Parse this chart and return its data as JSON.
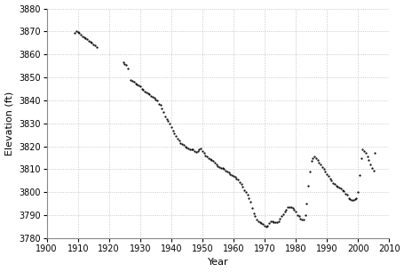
{
  "xlabel": "Year",
  "ylabel": "Elevation (ft)",
  "xlim": [
    1900,
    2010
  ],
  "ylim": [
    3780,
    3880
  ],
  "xticks": [
    1900,
    1910,
    1920,
    1930,
    1940,
    1950,
    1960,
    1970,
    1980,
    1990,
    2000,
    2010
  ],
  "yticks": [
    3780,
    3790,
    3800,
    3810,
    3820,
    3830,
    3840,
    3850,
    3860,
    3870,
    3880
  ],
  "dot_color": "#000000",
  "dot_size": 1.5,
  "background_color": "#ffffff",
  "grid_color": "#bbbbbb",
  "data": [
    [
      1909.0,
      3869.5
    ],
    [
      1909.5,
      3870.0
    ],
    [
      1910.0,
      3869.8
    ],
    [
      1910.5,
      3869.2
    ],
    [
      1911.0,
      3868.5
    ],
    [
      1911.5,
      3868.0
    ],
    [
      1912.0,
      3867.5
    ],
    [
      1912.5,
      3867.0
    ],
    [
      1913.0,
      3866.5
    ],
    [
      1913.5,
      3866.0
    ],
    [
      1914.0,
      3865.5
    ],
    [
      1914.5,
      3865.0
    ],
    [
      1915.0,
      3864.5
    ],
    [
      1915.5,
      3864.0
    ],
    [
      1916.0,
      3863.0
    ],
    [
      1924.5,
      3856.5
    ],
    [
      1925.0,
      3856.0
    ],
    [
      1925.5,
      3855.5
    ],
    [
      1926.0,
      3854.0
    ],
    [
      1927.0,
      3849.0
    ],
    [
      1927.5,
      3848.5
    ],
    [
      1928.0,
      3848.0
    ],
    [
      1928.5,
      3847.5
    ],
    [
      1929.0,
      3847.0
    ],
    [
      1929.5,
      3846.5
    ],
    [
      1930.0,
      3846.0
    ],
    [
      1930.5,
      3845.0
    ],
    [
      1931.0,
      3844.5
    ],
    [
      1931.5,
      3844.0
    ],
    [
      1932.0,
      3843.5
    ],
    [
      1932.5,
      3843.0
    ],
    [
      1933.0,
      3842.5
    ],
    [
      1933.5,
      3842.0
    ],
    [
      1934.0,
      3841.5
    ],
    [
      1934.5,
      3841.0
    ],
    [
      1935.0,
      3840.5
    ],
    [
      1935.5,
      3840.0
    ],
    [
      1936.0,
      3838.5
    ],
    [
      1936.5,
      3838.0
    ],
    [
      1937.0,
      3836.5
    ],
    [
      1937.5,
      3835.0
    ],
    [
      1938.0,
      3833.0
    ],
    [
      1938.5,
      3832.0
    ],
    [
      1939.0,
      3831.0
    ],
    [
      1939.5,
      3830.0
    ],
    [
      1940.0,
      3828.5
    ],
    [
      1940.5,
      3827.0
    ],
    [
      1941.0,
      3825.5
    ],
    [
      1941.5,
      3824.5
    ],
    [
      1942.0,
      3823.5
    ],
    [
      1942.5,
      3822.5
    ],
    [
      1943.0,
      3821.5
    ],
    [
      1943.5,
      3821.0
    ],
    [
      1944.0,
      3820.5
    ],
    [
      1944.5,
      3820.0
    ],
    [
      1945.0,
      3819.5
    ],
    [
      1945.5,
      3819.0
    ],
    [
      1946.0,
      3818.5
    ],
    [
      1946.5,
      3818.5
    ],
    [
      1947.0,
      3818.5
    ],
    [
      1947.5,
      3818.0
    ],
    [
      1948.0,
      3817.5
    ],
    [
      1948.5,
      3818.0
    ],
    [
      1949.0,
      3818.5
    ],
    [
      1949.5,
      3819.0
    ],
    [
      1950.0,
      3818.0
    ],
    [
      1950.5,
      3817.0
    ],
    [
      1951.0,
      3816.0
    ],
    [
      1951.5,
      3815.5
    ],
    [
      1952.0,
      3815.0
    ],
    [
      1952.5,
      3814.5
    ],
    [
      1953.0,
      3814.0
    ],
    [
      1953.5,
      3813.5
    ],
    [
      1954.0,
      3813.0
    ],
    [
      1954.5,
      3812.0
    ],
    [
      1955.0,
      3811.5
    ],
    [
      1955.5,
      3811.0
    ],
    [
      1956.0,
      3810.5
    ],
    [
      1956.5,
      3810.5
    ],
    [
      1957.0,
      3810.0
    ],
    [
      1957.5,
      3809.5
    ],
    [
      1958.0,
      3809.0
    ],
    [
      1958.5,
      3808.5
    ],
    [
      1959.0,
      3808.0
    ],
    [
      1959.5,
      3807.5
    ],
    [
      1960.0,
      3807.0
    ],
    [
      1960.5,
      3806.5
    ],
    [
      1961.0,
      3806.0
    ],
    [
      1961.5,
      3805.5
    ],
    [
      1962.0,
      3804.5
    ],
    [
      1962.5,
      3803.5
    ],
    [
      1963.0,
      3802.5
    ],
    [
      1963.5,
      3801.0
    ],
    [
      1964.0,
      3800.0
    ],
    [
      1964.5,
      3799.0
    ],
    [
      1965.0,
      3797.5
    ],
    [
      1965.5,
      3796.0
    ],
    [
      1966.0,
      3793.0
    ],
    [
      1966.5,
      3791.0
    ],
    [
      1967.0,
      3789.5
    ],
    [
      1967.5,
      3788.0
    ],
    [
      1968.0,
      3787.5
    ],
    [
      1968.5,
      3787.0
    ],
    [
      1969.0,
      3786.5
    ],
    [
      1969.5,
      3786.0
    ],
    [
      1970.0,
      3785.5
    ],
    [
      1970.5,
      3785.0
    ],
    [
      1971.0,
      3785.5
    ],
    [
      1971.5,
      3786.5
    ],
    [
      1972.0,
      3787.5
    ],
    [
      1972.5,
      3787.5
    ],
    [
      1973.0,
      3787.0
    ],
    [
      1973.5,
      3787.0
    ],
    [
      1974.0,
      3787.0
    ],
    [
      1974.5,
      3787.5
    ],
    [
      1975.0,
      3788.5
    ],
    [
      1975.5,
      3789.5
    ],
    [
      1976.0,
      3790.5
    ],
    [
      1976.5,
      3791.5
    ],
    [
      1977.0,
      3792.5
    ],
    [
      1977.5,
      3793.5
    ],
    [
      1978.0,
      3793.5
    ],
    [
      1978.5,
      3793.5
    ],
    [
      1979.0,
      3793.0
    ],
    [
      1979.5,
      3792.5
    ],
    [
      1980.0,
      3791.5
    ],
    [
      1980.5,
      3790.0
    ],
    [
      1981.0,
      3789.5
    ],
    [
      1981.5,
      3788.5
    ],
    [
      1982.0,
      3788.0
    ],
    [
      1982.5,
      3788.0
    ],
    [
      1983.0,
      3790.0
    ],
    [
      1983.5,
      3795.0
    ],
    [
      1984.0,
      3803.0
    ],
    [
      1984.5,
      3809.0
    ],
    [
      1985.0,
      3813.5
    ],
    [
      1985.5,
      3815.0
    ],
    [
      1986.0,
      3815.5
    ],
    [
      1986.5,
      3815.0
    ],
    [
      1987.0,
      3814.0
    ],
    [
      1987.5,
      3813.0
    ],
    [
      1988.0,
      3812.0
    ],
    [
      1988.5,
      3811.0
    ],
    [
      1989.0,
      3810.0
    ],
    [
      1989.5,
      3809.0
    ],
    [
      1990.0,
      3808.0
    ],
    [
      1990.5,
      3807.0
    ],
    [
      1991.0,
      3806.0
    ],
    [
      1991.5,
      3805.0
    ],
    [
      1992.0,
      3804.0
    ],
    [
      1992.5,
      3803.5
    ],
    [
      1993.0,
      3803.0
    ],
    [
      1993.5,
      3802.5
    ],
    [
      1994.0,
      3802.0
    ],
    [
      1994.5,
      3801.5
    ],
    [
      1995.0,
      3801.0
    ],
    [
      1995.5,
      3800.5
    ],
    [
      1996.0,
      3799.5
    ],
    [
      1996.5,
      3799.0
    ],
    [
      1997.0,
      3797.5
    ],
    [
      1997.5,
      3797.0
    ],
    [
      1998.0,
      3796.5
    ],
    [
      1998.5,
      3796.5
    ],
    [
      1999.0,
      3797.0
    ],
    [
      1999.5,
      3797.5
    ],
    [
      2000.0,
      3800.0
    ],
    [
      2000.5,
      3807.5
    ],
    [
      2001.0,
      3815.0
    ],
    [
      2001.5,
      3818.5
    ],
    [
      2002.0,
      3818.0
    ],
    [
      2002.5,
      3817.0
    ],
    [
      2003.0,
      3815.5
    ],
    [
      2003.5,
      3814.0
    ],
    [
      2004.0,
      3812.0
    ],
    [
      2004.5,
      3810.5
    ],
    [
      2005.0,
      3809.5
    ],
    [
      2005.5,
      3817.0
    ]
  ]
}
